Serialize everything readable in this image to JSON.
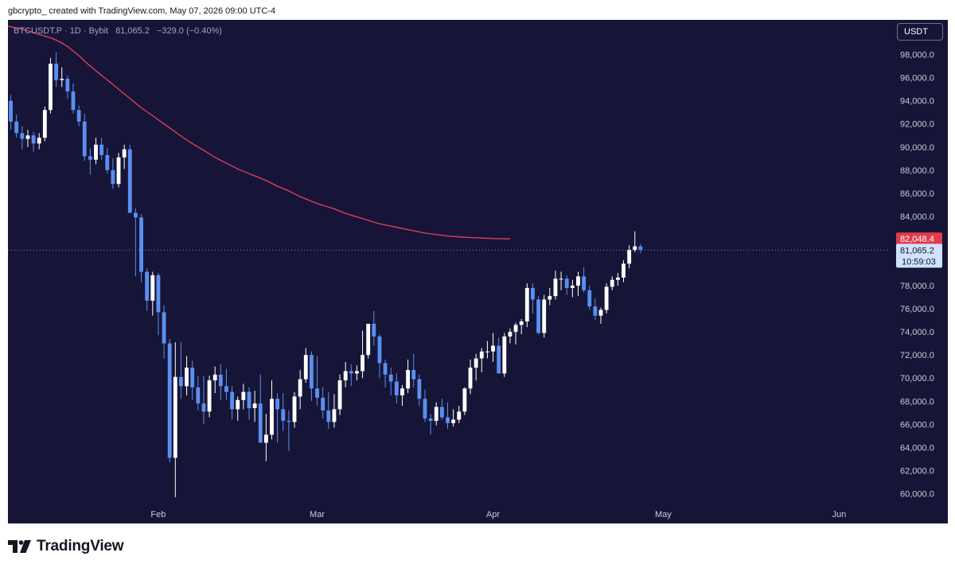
{
  "header": {
    "attribution": "gbcrypto_ created with TradingView.com, May 07, 2026 09:00 UTC-4"
  },
  "symbol": {
    "label": "BTCUSDT.P · 1D · Bybit",
    "price": "81,065.2",
    "change": "−329.0 (−0.40%)"
  },
  "currency_button": "USDT",
  "brand": {
    "name": "TradingView",
    "icon": "tradingview-logo-icon"
  },
  "colors": {
    "background": "#161537",
    "bull": "#ffffff",
    "bear": "#5b8ff0",
    "ma_line": "#e8405c",
    "price_label_bg": "#cfe2ff",
    "ma_label_bg": "#e03b4c",
    "axis_text": "#c9cbd9"
  },
  "chart_data": {
    "type": "candlestick",
    "x_ticks": [
      {
        "label": "Feb",
        "index": 26
      },
      {
        "label": "Mar",
        "index": 54
      },
      {
        "label": "Apr",
        "index": 85
      },
      {
        "label": "May",
        "index": 115
      },
      {
        "label": "Jun",
        "index": 146
      }
    ],
    "y_ticks": [
      60000,
      62000,
      64000,
      66000,
      68000,
      70000,
      72000,
      74000,
      76000,
      78000,
      80000,
      82000,
      84000,
      86000,
      88000,
      90000,
      92000,
      94000,
      96000,
      98000
    ],
    "y_tick_labels": [
      "60,000.0",
      "62,000.0",
      "64,000.0",
      "66,000.0",
      "68,000.0",
      "70,000.0",
      "72,000.0",
      "74,000.0",
      "76,000.0",
      "78,000.0",
      "80,000.0",
      "82,000.0",
      "84,000.0",
      "86,000.0",
      "88,000.0",
      "90,000.0",
      "92,000.0",
      "94,000.0",
      "96,000.0",
      "98,000.0"
    ],
    "ylim": [
      59000,
      101000
    ],
    "x_range": [
      -0.5,
      154.5
    ],
    "current_price": {
      "value": 81065.2,
      "label": "81,065.2",
      "countdown": "10:59:03"
    },
    "ma_label": {
      "value": 82048.4,
      "label": "82,048.4"
    },
    "candles": [
      [
        94000,
        94500,
        91500,
        92200
      ],
      [
        92200,
        92800,
        90800,
        91200
      ],
      [
        91200,
        91800,
        89800,
        90700
      ],
      [
        90700,
        91500,
        90000,
        91000
      ],
      [
        91000,
        91300,
        89600,
        90300
      ],
      [
        90300,
        91200,
        89800,
        90800
      ],
      [
        90800,
        93500,
        90500,
        93200
      ],
      [
        93200,
        97700,
        92900,
        97200
      ],
      [
        97200,
        98200,
        95200,
        95800
      ],
      [
        95800,
        96900,
        95200,
        95900
      ],
      [
        95900,
        96200,
        94200,
        94800
      ],
      [
        94800,
        95500,
        92900,
        93200
      ],
      [
        93200,
        93600,
        91800,
        92200
      ],
      [
        92200,
        92900,
        88800,
        89200
      ],
      [
        89200,
        89900,
        87600,
        88900
      ],
      [
        88900,
        90800,
        88500,
        90200
      ],
      [
        90200,
        90800,
        88900,
        89300
      ],
      [
        89300,
        89900,
        87700,
        88000
      ],
      [
        88000,
        89000,
        86400,
        86800
      ],
      [
        86800,
        89500,
        86500,
        89100
      ],
      [
        89100,
        90200,
        88100,
        89800
      ],
      [
        89800,
        90200,
        84300,
        84300
      ],
      [
        84300,
        84700,
        78800,
        83900
      ],
      [
        83900,
        84200,
        78300,
        79200
      ],
      [
        79200,
        79500,
        75800,
        76700
      ],
      [
        76700,
        79200,
        75400,
        78900
      ],
      [
        78900,
        79100,
        73700,
        75700
      ],
      [
        75700,
        76300,
        71700,
        73000
      ],
      [
        73000,
        73400,
        62700,
        63100
      ],
      [
        63100,
        73100,
        59700,
        70100
      ],
      [
        70100,
        73100,
        68200,
        69300
      ],
      [
        69300,
        71900,
        68500,
        70900
      ],
      [
        70900,
        71500,
        68100,
        69200
      ],
      [
        69200,
        70200,
        67200,
        67800
      ],
      [
        67800,
        70200,
        66000,
        67100
      ],
      [
        67100,
        70200,
        66600,
        69800
      ],
      [
        69800,
        71000,
        68700,
        70300
      ],
      [
        70300,
        71200,
        68100,
        69300
      ],
      [
        69300,
        70800,
        68100,
        68800
      ],
      [
        68800,
        69300,
        66400,
        67300
      ],
      [
        67300,
        68400,
        66300,
        68100
      ],
      [
        68100,
        69500,
        67300,
        68800
      ],
      [
        68800,
        69200,
        66400,
        67400
      ],
      [
        67400,
        68900,
        66200,
        67800
      ],
      [
        67800,
        70300,
        64400,
        64400
      ],
      [
        64400,
        66900,
        62800,
        65100
      ],
      [
        65100,
        69800,
        64700,
        68200
      ],
      [
        68200,
        68700,
        64400,
        67300
      ],
      [
        67300,
        68700,
        65400,
        66300
      ],
      [
        66300,
        67200,
        63700,
        66200
      ],
      [
        66200,
        68800,
        65700,
        68400
      ],
      [
        68400,
        70700,
        67300,
        69900
      ],
      [
        69900,
        72600,
        69600,
        72000
      ],
      [
        72000,
        72300,
        68000,
        69100
      ],
      [
        69100,
        71900,
        67600,
        68300
      ],
      [
        68300,
        69200,
        66500,
        67200
      ],
      [
        67200,
        68800,
        65600,
        66200
      ],
      [
        66200,
        68600,
        65700,
        67300
      ],
      [
        67300,
        70300,
        66800,
        69800
      ],
      [
        69800,
        71400,
        69200,
        70600
      ],
      [
        70600,
        71200,
        69300,
        70400
      ],
      [
        70400,
        71100,
        69800,
        70600
      ],
      [
        70600,
        74100,
        70000,
        72000
      ],
      [
        72000,
        74700,
        71700,
        74700
      ],
      [
        74700,
        75800,
        72800,
        73600
      ],
      [
        73600,
        73800,
        70000,
        71300
      ],
      [
        71300,
        71600,
        69200,
        70300
      ],
      [
        70300,
        70900,
        68500,
        69700
      ],
      [
        69700,
        70400,
        67800,
        68500
      ],
      [
        68500,
        69400,
        67600,
        69100
      ],
      [
        69100,
        71600,
        68700,
        70700
      ],
      [
        70700,
        72100,
        69200,
        69900
      ],
      [
        69900,
        70300,
        67600,
        68200
      ],
      [
        68200,
        69000,
        66200,
        66500
      ],
      [
        66500,
        66900,
        65100,
        66300
      ],
      [
        66300,
        67900,
        65900,
        67500
      ],
      [
        67500,
        68200,
        66400,
        66600
      ],
      [
        66600,
        67900,
        65600,
        66100
      ],
      [
        66100,
        67300,
        65800,
        66400
      ],
      [
        66400,
        67600,
        66100,
        67100
      ],
      [
        67100,
        69200,
        66800,
        69100
      ],
      [
        69100,
        71600,
        68600,
        70900
      ],
      [
        70900,
        72100,
        69800,
        71700
      ],
      [
        71700,
        72600,
        70500,
        72300
      ],
      [
        72300,
        73200,
        71700,
        72300
      ],
      [
        72300,
        73900,
        71400,
        72800
      ],
      [
        72800,
        73500,
        70400,
        70400
      ],
      [
        70400,
        73900,
        70100,
        73600
      ],
      [
        73600,
        74300,
        73000,
        74000
      ],
      [
        74000,
        74800,
        72900,
        74600
      ],
      [
        74600,
        75100,
        73800,
        74900
      ],
      [
        74900,
        78200,
        74400,
        77800
      ],
      [
        77800,
        78200,
        75600,
        76800
      ],
      [
        76800,
        77100,
        73800,
        73900
      ],
      [
        73900,
        77200,
        73500,
        76800
      ],
      [
        76800,
        77800,
        76300,
        77100
      ],
      [
        77100,
        79300,
        76800,
        78600
      ],
      [
        78600,
        79200,
        77600,
        78600
      ],
      [
        78600,
        78900,
        77200,
        77800
      ],
      [
        77800,
        78500,
        77000,
        78000
      ],
      [
        78000,
        79200,
        77100,
        78800
      ],
      [
        78800,
        79600,
        77400,
        77600
      ],
      [
        77600,
        78000,
        75900,
        76200
      ],
      [
        76200,
        76900,
        75000,
        75400
      ],
      [
        75400,
        76100,
        74700,
        75900
      ],
      [
        75900,
        78200,
        75600,
        77900
      ],
      [
        77900,
        78800,
        77600,
        78500
      ],
      [
        78500,
        79100,
        78000,
        78700
      ],
      [
        78700,
        80200,
        78300,
        79900
      ],
      [
        79900,
        81500,
        79500,
        81100
      ],
      [
        81100,
        82700,
        80900,
        81400
      ],
      [
        81400,
        81600,
        80800,
        81100
      ]
    ],
    "ma_line": {
      "start_index": -1,
      "values": [
        100500,
        100400,
        100300,
        100200,
        100050,
        99900,
        99750,
        99600,
        99450,
        99250,
        99000,
        98700,
        98300,
        97900,
        97450,
        97000,
        96600,
        96200,
        95800,
        95400,
        95000,
        94600,
        94200,
        93800,
        93400,
        93050,
        92700,
        92350,
        92000,
        91650,
        91300,
        90950,
        90600,
        90300,
        90000,
        89700,
        89400,
        89100,
        88850,
        88600,
        88350,
        88100,
        87900,
        87700,
        87500,
        87300,
        87100,
        86850,
        86600,
        86400,
        86200,
        85950,
        85700,
        85500,
        85300,
        85100,
        84950,
        84800,
        84650,
        84450,
        84250,
        84100,
        83950,
        83800,
        83650,
        83500,
        83350,
        83250,
        83150,
        83050,
        82950,
        82850,
        82750,
        82650,
        82550,
        82480,
        82420,
        82360,
        82300,
        82260,
        82220,
        82190,
        82160,
        82140,
        82120,
        82100,
        82080,
        82065,
        82050,
        82048.4
      ]
    }
  }
}
